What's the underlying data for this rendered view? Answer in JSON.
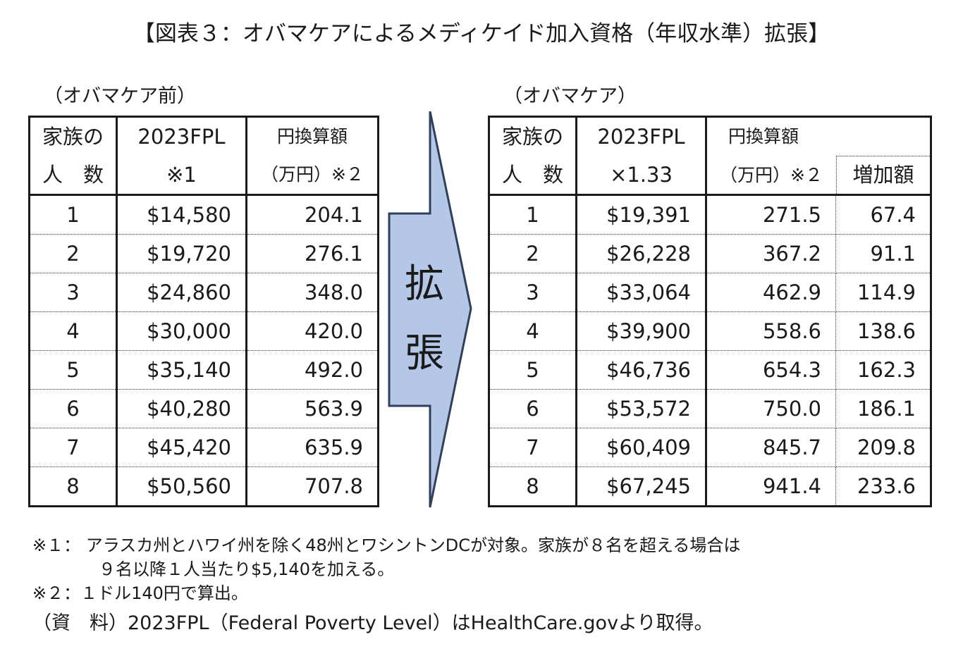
{
  "title": "【図表３：オバマケアによるメディケイド加入資格（年収水準）拡張】",
  "left_subtitle": "（オバマケア前）",
  "right_subtitle": "（オバマケア）",
  "arrow_text": [
    "拡",
    "張"
  ],
  "left_table": {
    "headers": {
      "family_1": "家族の",
      "family_2": "人　数",
      "fpl_1": "2023FPL",
      "fpl_2": "※1",
      "yen_1": "円換算額",
      "yen_2": "（万円）※２"
    },
    "rows": [
      {
        "n": "1",
        "fpl": "$14,580",
        "yen": "204.1"
      },
      {
        "n": "2",
        "fpl": "$19,720",
        "yen": "276.1"
      },
      {
        "n": "3",
        "fpl": "$24,860",
        "yen": "348.0"
      },
      {
        "n": "4",
        "fpl": "$30,000",
        "yen": "420.0"
      },
      {
        "n": "5",
        "fpl": "$35,140",
        "yen": "492.0"
      },
      {
        "n": "6",
        "fpl": "$40,280",
        "yen": "563.9"
      },
      {
        "n": "7",
        "fpl": "$45,420",
        "yen": "635.9"
      },
      {
        "n": "8",
        "fpl": "$50,560",
        "yen": "707.8"
      }
    ]
  },
  "right_table": {
    "headers": {
      "family_1": "家族の",
      "family_2": "人　数",
      "fpl_1": "2023FPL",
      "fpl_2": "×1.33",
      "yen_1": "円換算額",
      "yen_2": "（万円）※２",
      "increase": "増加額"
    },
    "rows": [
      {
        "n": "1",
        "fpl": "$19,391",
        "yen": "271.5",
        "inc": "67.4"
      },
      {
        "n": "2",
        "fpl": "$26,228",
        "yen": "367.2",
        "inc": "91.1"
      },
      {
        "n": "3",
        "fpl": "$33,064",
        "yen": "462.9",
        "inc": "114.9"
      },
      {
        "n": "4",
        "fpl": "$39,900",
        "yen": "558.6",
        "inc": "138.6"
      },
      {
        "n": "5",
        "fpl": "$46,736",
        "yen": "654.3",
        "inc": "162.3"
      },
      {
        "n": "6",
        "fpl": "$53,572",
        "yen": "750.0",
        "inc": "186.1"
      },
      {
        "n": "7",
        "fpl": "$60,409",
        "yen": "845.7",
        "inc": "209.8"
      },
      {
        "n": "8",
        "fpl": "$67,245",
        "yen": "941.4",
        "inc": "233.6"
      }
    ]
  },
  "notes": {
    "note1_line1": "※１：  アラスカ州とハワイ州を除く48州とワシントンDCが対象。家族が８名を超える場合は",
    "note1_line2": "９名以降１人当たり$5,140を加える。",
    "note2": "※２：１ドル140円で算出。",
    "source": "（資　料）2023FPL（Federal Poverty Level）はHealthCare.govより取得。"
  },
  "colors": {
    "arrow_fill": "#b4c7e7",
    "arrow_stroke": "#2f3f5c"
  }
}
